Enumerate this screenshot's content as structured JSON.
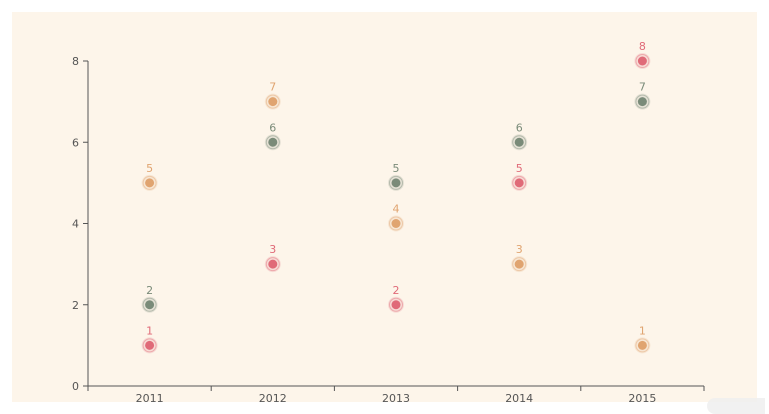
{
  "chart_data": {
    "type": "scatter",
    "title": "",
    "xlabel": "",
    "ylabel": "",
    "categories": [
      "2011",
      "2012",
      "2013",
      "2014",
      "2015"
    ],
    "ylim": [
      0,
      8
    ],
    "yticks": [
      0,
      2,
      4,
      6,
      8
    ],
    "grid": false,
    "legend": "none",
    "series": [
      {
        "color": "#e06a78",
        "values": [
          1,
          3,
          2,
          5,
          8
        ]
      },
      {
        "color": "#7a8b79",
        "values": [
          2,
          6,
          5,
          6,
          7
        ]
      },
      {
        "color": "#e0a470",
        "values": [
          5,
          7,
          4,
          3,
          1
        ]
      }
    ]
  }
}
